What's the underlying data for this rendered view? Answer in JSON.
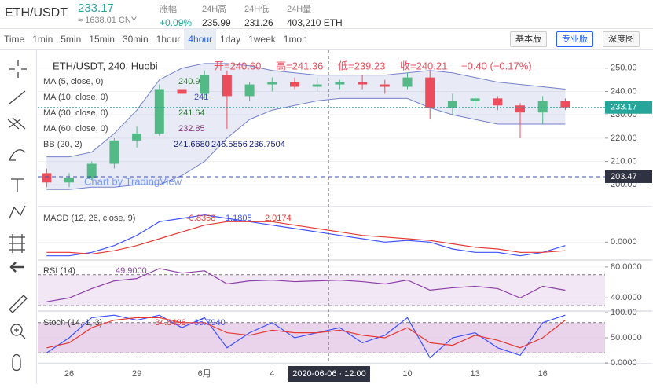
{
  "header": {
    "pair": "ETH/USDT",
    "price": "233.17",
    "cny": "≈ 1638.01 CNY",
    "stats": [
      {
        "label": "涨幅",
        "value": "+0.09%"
      },
      {
        "label": "24H高",
        "value": "235.99"
      },
      {
        "label": "24H低",
        "value": "231.26"
      },
      {
        "label": "24H量",
        "value": "403,210 ETH"
      }
    ]
  },
  "toolbar": {
    "intervals": [
      "Time",
      "1min",
      "5min",
      "15min",
      "30min",
      "1hour",
      "4hour",
      "1day",
      "1week",
      "1mon"
    ],
    "active": 6,
    "views": [
      "基本版",
      "专业版",
      "深度图"
    ],
    "active_view": 1
  },
  "legend": {
    "symbol": "ETH/USDT, 240, Huobi",
    "ohlc": [
      "开=240.60",
      "高=241.36",
      "低=239.23",
      "收=240.21"
    ],
    "change": "−0.40 (−0.17%)",
    "studies": [
      {
        "name": "MA (5, close, 0)",
        "values": [
          "240.9"
        ]
      },
      {
        "name": "MA (10, close, 0)",
        "values": [
          "241"
        ]
      },
      {
        "name": "MA (30, close, 0)",
        "values": [
          "241.64"
        ]
      },
      {
        "name": "MA (60, close, 0)",
        "values": [
          "232.85"
        ]
      },
      {
        "name": "BB (20, 2)",
        "values": [
          "241.6680",
          "246.5856",
          "236.7504"
        ]
      }
    ]
  },
  "watermark": "Chart by TradingView",
  "crosshair": "2020-06-06 · 12:00",
  "chart_data": [
    {
      "type": "candlestick",
      "categories": [
        null,
        "26",
        null,
        null,
        "29",
        null,
        null,
        "6月",
        null,
        null,
        "4",
        null,
        null,
        null,
        null,
        null,
        "10",
        null,
        null,
        "13",
        null,
        null,
        "16",
        null
      ],
      "open": [
        205,
        201,
        203,
        209,
        219,
        222,
        241,
        239,
        247,
        238,
        243,
        244,
        242,
        243,
        244,
        243,
        242,
        246,
        233,
        236,
        237,
        234,
        231,
        236
      ],
      "high": [
        207,
        205,
        210,
        220,
        225,
        243,
        245,
        249,
        249,
        244,
        246,
        246,
        246,
        245,
        247,
        245,
        248,
        249,
        239,
        238,
        238,
        235,
        238,
        237
      ],
      "low": [
        199,
        199,
        202,
        207,
        216,
        221,
        236,
        237,
        224,
        236,
        240,
        241,
        240,
        241,
        241,
        239,
        241,
        228,
        230,
        233,
        232,
        220,
        226,
        232
      ],
      "close": [
        201,
        203,
        209,
        219,
        222,
        241,
        239,
        247,
        238,
        243,
        244,
        242,
        243,
        244,
        243,
        242,
        246,
        233,
        236,
        237,
        234,
        231,
        236,
        233.17
      ],
      "up_color": "#53b987",
      "down_color": "#eb4d5c",
      "bb_upper": [
        212,
        212,
        214,
        222,
        232,
        245,
        250,
        252,
        252,
        251,
        249,
        248,
        247,
        247,
        247,
        247,
        248,
        249,
        248,
        246,
        244,
        243,
        242,
        241
      ],
      "bb_lower": [
        198,
        198,
        199,
        199,
        200,
        200,
        204,
        210,
        220,
        228,
        232,
        234,
        236,
        237,
        237,
        237,
        237,
        233,
        230,
        228,
        226,
        226,
        226,
        226
      ],
      "bb_color": "#3f51b5",
      "ylim": [
        191,
        258
      ],
      "yticks": [
        {
          "value": 200,
          "label": "200.00"
        },
        {
          "value": 210,
          "label": "210.00"
        },
        {
          "value": 220,
          "label": "220.00"
        },
        {
          "value": 230,
          "label": "230.00"
        },
        {
          "value": 240,
          "label": "240.00"
        },
        {
          "value": 250,
          "label": "250.00"
        }
      ],
      "last": {
        "value": 233.17,
        "label": "233.17"
      },
      "marker": {
        "value": 203.47,
        "label": "203.47"
      }
    },
    {
      "type": "line",
      "title": "MACD (12, 26, close, 9)",
      "legend_values": [
        "-0.8368",
        "1.1805",
        "2.0174"
      ],
      "series": [
        {
          "color": "#3f51ff",
          "values": [
            -4,
            -4,
            -3,
            -1,
            2,
            6,
            7,
            8,
            7,
            6,
            5,
            4,
            3,
            2,
            1,
            0,
            0.5,
            0,
            -2,
            -3,
            -3,
            -4,
            -3,
            -1
          ]
        },
        {
          "color": "#e53935",
          "values": [
            -3,
            -3,
            -3.5,
            -2.5,
            -1,
            1,
            3,
            5,
            6,
            6,
            6,
            5,
            4,
            3,
            2,
            1.5,
            1,
            0.5,
            -0.5,
            -1.5,
            -2,
            -3,
            -3,
            -2.5
          ]
        }
      ],
      "ylim": [
        -5,
        10
      ],
      "yticks": [
        {
          "value": 0,
          "label": "0.0000"
        }
      ]
    },
    {
      "type": "line",
      "title": "RSI (14)",
      "legend_values": [
        "49.9000"
      ],
      "series": [
        {
          "color": "#8e3fa8",
          "values": [
            35,
            40,
            52,
            62,
            65,
            78,
            72,
            75,
            58,
            62,
            63,
            61,
            62,
            63,
            61,
            58,
            63,
            50,
            53,
            55,
            52,
            40,
            55,
            49.9
          ]
        }
      ],
      "band": [
        30,
        70
      ],
      "band_color": "#e9d8ef",
      "ylim": [
        24,
        88
      ],
      "yticks": [
        {
          "value": 40,
          "label": "40.0000"
        },
        {
          "value": 80,
          "label": "80.0000"
        }
      ]
    },
    {
      "type": "line",
      "title": "Stoch (14, 1, 3)",
      "legend_values": [
        "34.8498",
        "35.7940"
      ],
      "series": [
        {
          "color": "#3f51ff",
          "values": [
            20,
            50,
            90,
            95,
            85,
            95,
            70,
            90,
            30,
            60,
            80,
            50,
            60,
            70,
            40,
            55,
            90,
            10,
            50,
            60,
            30,
            15,
            80,
            95
          ]
        },
        {
          "color": "#e53935",
          "values": [
            30,
            40,
            70,
            85,
            90,
            90,
            80,
            80,
            60,
            55,
            65,
            60,
            60,
            65,
            55,
            50,
            70,
            40,
            35,
            55,
            45,
            30,
            50,
            85
          ]
        }
      ],
      "band": [
        20,
        80
      ],
      "band_color": "#dcb8e0",
      "ylim": [
        0,
        100
      ],
      "yticks": [
        {
          "value": 0,
          "label": "0.0000"
        },
        {
          "value": 50,
          "label": "50.0000"
        },
        {
          "value": 100,
          "label": "100.00"
        }
      ]
    }
  ]
}
